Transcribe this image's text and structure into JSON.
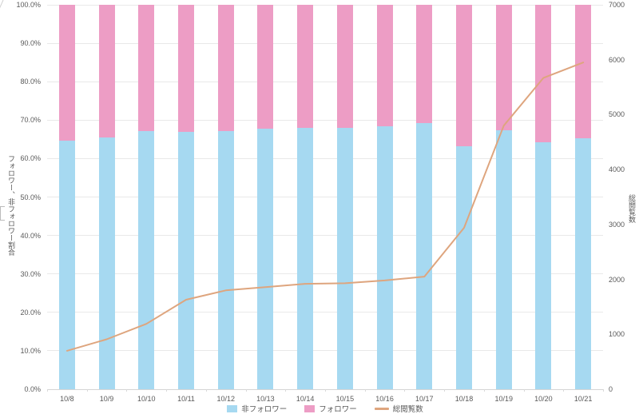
{
  "chart_data": {
    "type": "combo-stacked-bar-line",
    "categories": [
      "10/8",
      "10/9",
      "10/10",
      "10/11",
      "10/12",
      "10/13",
      "10/14",
      "10/15",
      "10/16",
      "10/17",
      "10/18",
      "10/19",
      "10/20",
      "10/21"
    ],
    "series": [
      {
        "name": "非フォロワー",
        "type": "bar",
        "axis": "left",
        "color": "#a6d9f1",
        "values": [
          64.6,
          65.4,
          67.1,
          66.9,
          67.2,
          67.7,
          68.0,
          68.0,
          68.4,
          69.2,
          63.2,
          67.3,
          64.3,
          65.2
        ]
      },
      {
        "name": "フォロワー",
        "type": "bar",
        "axis": "left",
        "color": "#ed9dc5",
        "values": [
          35.4,
          34.6,
          32.9,
          33.1,
          32.8,
          32.3,
          32.0,
          32.0,
          31.6,
          30.8,
          36.8,
          32.7,
          35.7,
          34.8
        ]
      },
      {
        "name": "総閲覧数",
        "type": "line",
        "axis": "right",
        "color": "#dea57e",
        "values": [
          700,
          910,
          1190,
          1630,
          1800,
          1860,
          1920,
          1930,
          1980,
          2050,
          2940,
          4800,
          5670,
          5950
        ]
      }
    ],
    "stacked_percent": true,
    "left_axis": {
      "title": "フォロワー、非フォロワー割合",
      "min": 0,
      "max": 100,
      "step": 10,
      "suffix": "%",
      "decimals": 1
    },
    "right_axis": {
      "title": "総閲覧数",
      "min": 0,
      "max": 7000,
      "step": 1000,
      "suffix": "",
      "decimals": 0
    },
    "legend_position": "bottom",
    "grid": "horizontal"
  },
  "colors": {
    "text": "#595959",
    "gridline": "#e9e9e9",
    "axis_line": "#d5d5d5",
    "background": "#ffffff"
  }
}
